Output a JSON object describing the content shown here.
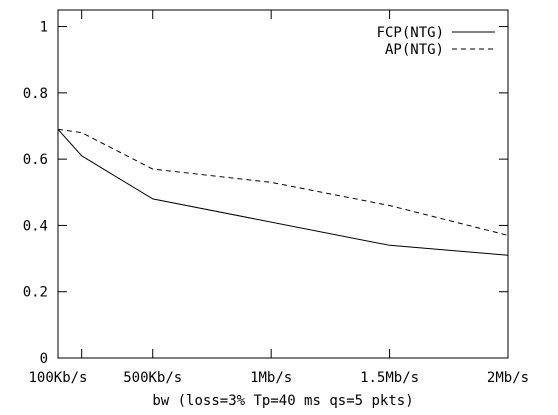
{
  "chart_data": {
    "type": "line",
    "title": "",
    "xlabel": "bw (loss=3%  Tp=40 ms qs=5 pkts)",
    "ylabel": "",
    "xlim": [
      0.1,
      2.0
    ],
    "ylim": [
      0,
      1.05
    ],
    "x_ticks": [
      {
        "value": 0.1,
        "label": "100Kb/s"
      },
      {
        "value": 0.5,
        "label": "500Kb/s"
      },
      {
        "value": 1.0,
        "label": "1Mb/s"
      },
      {
        "value": 1.5,
        "label": "1.5Mb/s"
      },
      {
        "value": 2.0,
        "label": "2Mb/s"
      }
    ],
    "y_ticks": [
      {
        "value": 0,
        "label": "0"
      },
      {
        "value": 0.2,
        "label": "0.2"
      },
      {
        "value": 0.4,
        "label": "0.4"
      },
      {
        "value": 0.6,
        "label": "0.6"
      },
      {
        "value": 0.8,
        "label": "0.8"
      },
      {
        "value": 1.0,
        "label": "1"
      }
    ],
    "minor_x_ticks": [
      0.2
    ],
    "grid": false,
    "legend_position": "top-right",
    "series": [
      {
        "name": "FCP(NTG)",
        "style": "solid",
        "color": "#000000",
        "x": [
          0.1,
          0.2,
          0.5,
          1.5,
          2.0
        ],
        "y": [
          0.69,
          0.61,
          0.48,
          0.34,
          0.31
        ]
      },
      {
        "name": "AP(NTG)",
        "style": "dashed",
        "color": "#000000",
        "x": [
          0.1,
          0.2,
          0.5,
          1.0,
          1.5,
          2.0
        ],
        "y": [
          0.69,
          0.68,
          0.57,
          0.53,
          0.46,
          0.37
        ]
      }
    ]
  }
}
